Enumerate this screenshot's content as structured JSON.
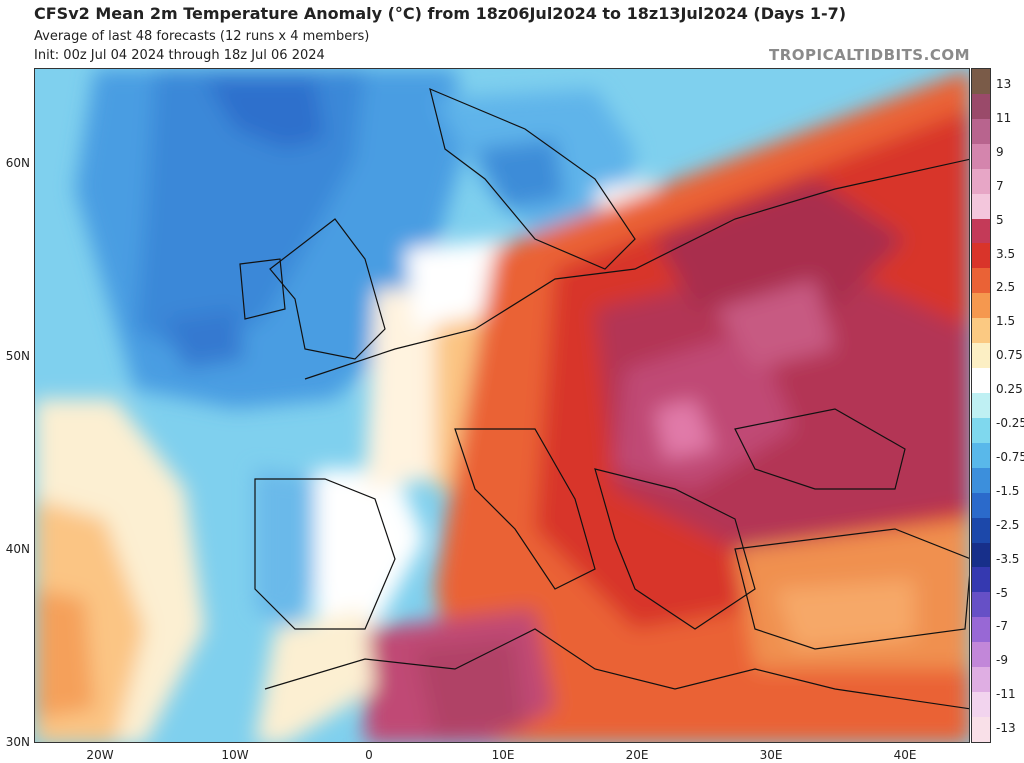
{
  "header": {
    "title": "CFSv2 Mean 2m Temperature Anomaly (°C) from 18z06Jul2024 to 18z13Jul2024 (Days 1-7)",
    "subtitle": "Average of last 48 forecasts (12 runs x 4 members)",
    "init": "Init: 00z Jul 04 2024 through 18z Jul 06 2024",
    "brand": "TROPICALTIDBITS.COM"
  },
  "map": {
    "lat_labels": [
      "60N",
      "50N",
      "40N",
      "30N"
    ],
    "lon_labels": [
      "20W",
      "10W",
      "0",
      "10E",
      "20E",
      "30E",
      "40E"
    ]
  },
  "colorbar": {
    "labels": [
      "13",
      "11",
      "9",
      "7",
      "5",
      "3.5",
      "2.5",
      "1.5",
      "0.75",
      "0.25",
      "-0.25",
      "-0.75",
      "-1.5",
      "-2.5",
      "-3.5",
      "-5",
      "-7",
      "-9",
      "-11",
      "-13"
    ],
    "colors": [
      "#7a5b48",
      "#9a4a6a",
      "#b8648e",
      "#d485ad",
      "#e7a6c6",
      "#f3c6dc",
      "#c43a58",
      "#d9342a",
      "#ea6236",
      "#f5984f",
      "#fbc982",
      "#fcefc4",
      "#ffffff",
      "#bff0f3",
      "#7fd8ee",
      "#59b8ea",
      "#3c8fdc",
      "#2b6acb",
      "#1c48aa",
      "#172f8a",
      "#3539b0",
      "#6650c6",
      "#9868d5",
      "#c287d9",
      "#dfaee3",
      "#f2d4ee",
      "#f9e0e8"
    ]
  }
}
